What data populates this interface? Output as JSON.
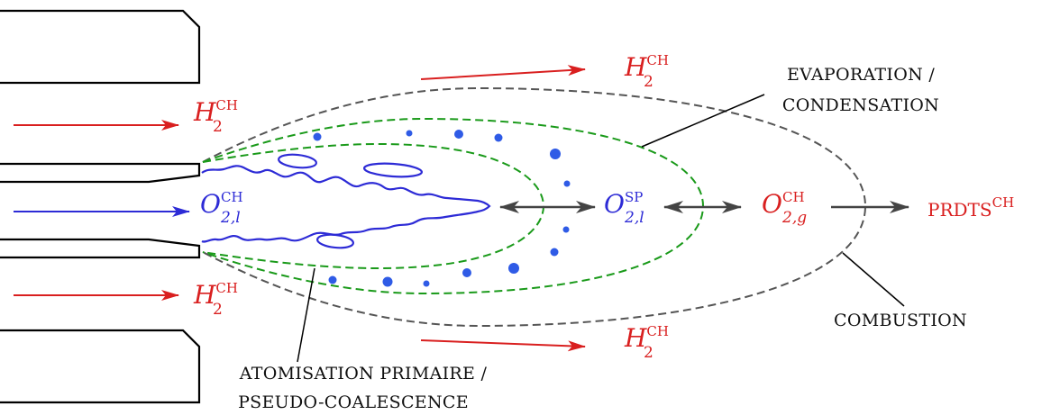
{
  "colors": {
    "red": "#d91f1f",
    "blue": "#2d2bd6",
    "droplet": "#2f5be6",
    "green": "#1a9a1a",
    "gray": "#444444",
    "black": "#000000"
  },
  "species": {
    "h2": {
      "base": "H",
      "sub": "2",
      "sup": "CH"
    },
    "o2_liquid": {
      "base": "O",
      "sub": "2,l",
      "sup": "CH"
    },
    "o2_spray": {
      "base": "O",
      "sub": "2,l",
      "sup": "SP"
    },
    "o2_gas": {
      "base": "O",
      "sub": "2,g",
      "sup": "CH"
    },
    "products": {
      "base": "PRDTS",
      "sup": "CH"
    }
  },
  "labels": {
    "evaporation_line1": "EVAPORATION /",
    "evaporation_line2": "CONDENSATION",
    "combustion": "COMBUSTION",
    "atomisation_line1": "ATOMISATION PRIMAIRE /",
    "atomisation_line2": "PSEUDO-COALESCENCE"
  }
}
